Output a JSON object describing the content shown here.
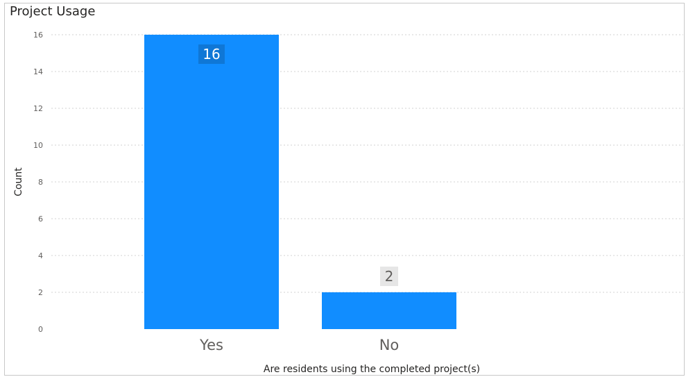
{
  "title": "Project Usage",
  "colors": {
    "bar": "#118dff",
    "grid": "#d0d0d0",
    "label_bg_dark": "#0f77d6",
    "label_bg_light": "#e6e6e6"
  },
  "chart_data": {
    "type": "bar",
    "categories": [
      "Yes",
      "No"
    ],
    "values": [
      16,
      2
    ],
    "title": "Project Usage",
    "xlabel": "Are residents using the completed project(s)",
    "ylabel": "Count",
    "ylim": [
      0,
      16
    ],
    "yticks": [
      0,
      2,
      4,
      6,
      8,
      10,
      12,
      14,
      16
    ],
    "grid": true,
    "data_labels": [
      "16",
      "2"
    ]
  }
}
